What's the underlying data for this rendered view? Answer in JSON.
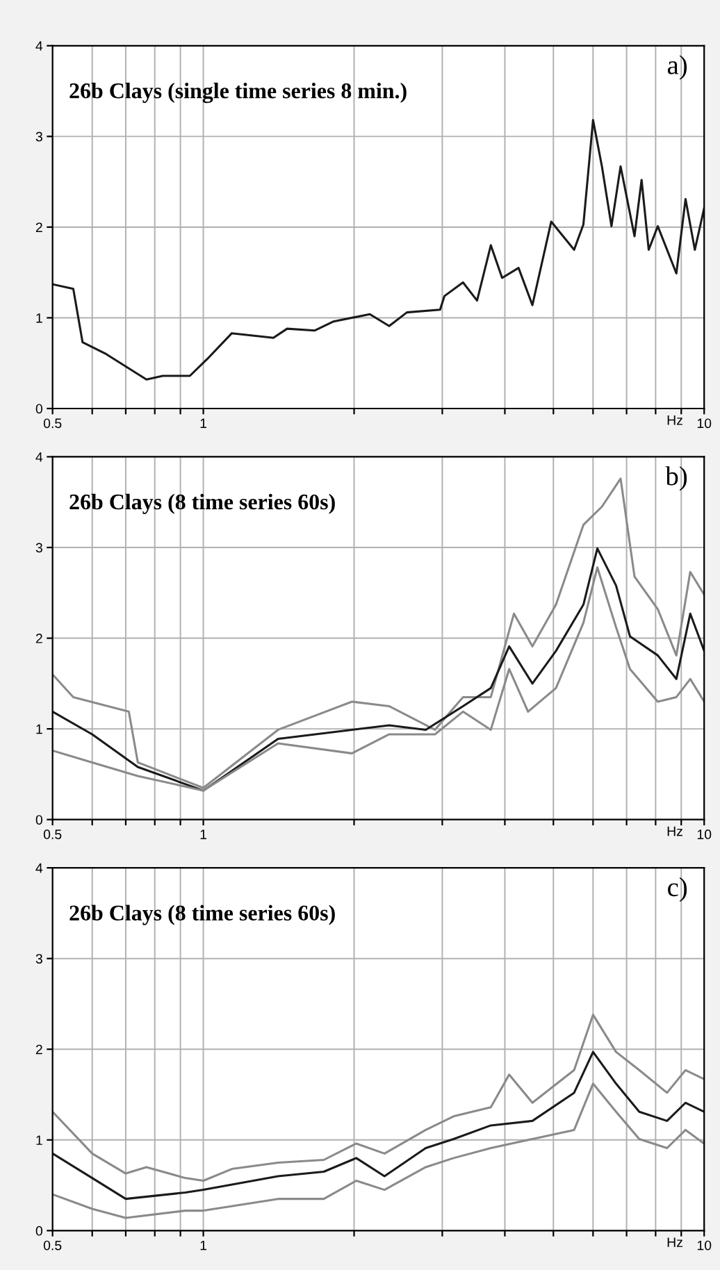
{
  "chart_data": [
    {
      "type": "line",
      "title": "26b Clays (single time series 8 min.)",
      "xlabel": "Hz",
      "annotations": [
        "a)"
      ],
      "log": "x",
      "grid": true,
      "xlim": [
        0.5,
        10
      ],
      "ylim": [
        0,
        4
      ],
      "xticks": [
        0.5,
        {
          "value": 0.6,
          "label": null
        },
        {
          "value": 0.7,
          "label": null
        },
        {
          "value": 0.8,
          "label": null
        },
        {
          "value": 0.9,
          "label": null
        },
        1,
        {
          "value": 2,
          "label": null
        },
        {
          "value": 3,
          "label": null
        },
        {
          "value": 4,
          "label": null
        },
        {
          "value": 5,
          "label": null
        },
        {
          "value": 6,
          "label": null
        },
        {
          "value": 7,
          "label": null
        },
        {
          "value": 8,
          "label": null
        },
        {
          "value": 9,
          "label": null
        },
        10
      ],
      "yticks": [
        0,
        1,
        2,
        3,
        4
      ],
      "series": [
        {
          "color": "#1a1a1a",
          "x": [
            0.5,
            0.55,
            0.574,
            0.64,
            0.77,
            0.83,
            0.94,
            1.02,
            1.14,
            1.38,
            1.47,
            1.67,
            1.82,
            2.15,
            2.35,
            2.55,
            2.97,
            3.03,
            3.3,
            3.52,
            3.75,
            3.95,
            4.26,
            4.54,
            4.95,
            5.5,
            5.74,
            6.0,
            6.25,
            6.53,
            6.81,
            7.26,
            7.5,
            7.75,
            8.08,
            8.8,
            9.18,
            9.58,
            10
          ],
          "values": [
            1.37,
            1.32,
            0.73,
            0.6,
            0.32,
            0.36,
            0.36,
            0.55,
            0.83,
            0.78,
            0.88,
            0.86,
            0.96,
            1.04,
            0.91,
            1.06,
            1.09,
            1.24,
            1.39,
            1.19,
            1.8,
            1.44,
            1.55,
            1.14,
            2.06,
            1.75,
            2.03,
            3.18,
            2.67,
            2.01,
            2.67,
            1.9,
            2.52,
            1.75,
            2.01,
            1.49,
            2.31,
            1.75,
            2.21
          ]
        }
      ]
    },
    {
      "type": "line",
      "title": "26b Clays (8 time series 60s)",
      "xlabel": "Hz",
      "annotations": [
        "b)"
      ],
      "log": "x",
      "grid": true,
      "xlim": [
        0.5,
        10
      ],
      "ylim": [
        0,
        4
      ],
      "xticks": [
        0.5,
        {
          "value": 0.6,
          "label": null
        },
        {
          "value": 0.7,
          "label": null
        },
        {
          "value": 0.8,
          "label": null
        },
        {
          "value": 0.9,
          "label": null
        },
        1,
        {
          "value": 2,
          "label": null
        },
        {
          "value": 3,
          "label": null
        },
        {
          "value": 4,
          "label": null
        },
        {
          "value": 5,
          "label": null
        },
        {
          "value": 6,
          "label": null
        },
        {
          "value": 7,
          "label": null
        },
        {
          "value": 8,
          "label": null
        },
        {
          "value": 9,
          "label": null
        },
        10
      ],
      "yticks": [
        0,
        1,
        2,
        3,
        4
      ],
      "series": [
        {
          "color": "#8a8a8a",
          "x": [
            0.5,
            0.55,
            0.71,
            0.74,
            1.0,
            1.41,
            1.98,
            2.35,
            2.9,
            3.3,
            3.75,
            4.17,
            4.54,
            5.06,
            5.74,
            6.25,
            6.81,
            7.26,
            8.08,
            8.8,
            9.38,
            10
          ],
          "values": [
            1.6,
            1.35,
            1.19,
            0.63,
            0.35,
            0.99,
            1.3,
            1.25,
            0.99,
            1.35,
            1.35,
            2.27,
            1.91,
            2.37,
            3.25,
            3.45,
            3.76,
            2.68,
            2.32,
            1.81,
            2.73,
            2.48
          ]
        },
        {
          "color": "#1a1a1a",
          "x": [
            0.5,
            0.6,
            0.74,
            1.0,
            1.41,
            1.98,
            2.35,
            2.78,
            3.3,
            3.75,
            4.08,
            4.54,
            5.06,
            5.74,
            6.12,
            6.67,
            7.11,
            8.08,
            8.8,
            9.38,
            10
          ],
          "values": [
            1.19,
            0.94,
            0.58,
            0.32,
            0.89,
            0.99,
            1.04,
            0.99,
            1.25,
            1.45,
            1.91,
            1.5,
            1.86,
            2.37,
            2.99,
            2.58,
            2.02,
            1.81,
            1.55,
            2.27,
            1.86
          ]
        },
        {
          "color": "#8a8a8a",
          "x": [
            0.5,
            0.6,
            0.74,
            1.0,
            1.41,
            1.98,
            2.35,
            2.9,
            3.3,
            3.75,
            4.08,
            4.45,
            5.06,
            5.74,
            6.12,
            6.67,
            7.11,
            8.08,
            8.8,
            9.38,
            10
          ],
          "values": [
            0.76,
            0.63,
            0.48,
            0.32,
            0.84,
            0.73,
            0.94,
            0.94,
            1.19,
            0.99,
            1.66,
            1.19,
            1.45,
            2.17,
            2.78,
            2.12,
            1.66,
            1.3,
            1.35,
            1.55,
            1.3
          ]
        }
      ]
    },
    {
      "type": "line",
      "title": "26b Clays (8 time series 60s)",
      "xlabel": "Hz",
      "annotations": [
        "c)"
      ],
      "log": "x",
      "grid": true,
      "xlim": [
        0.5,
        10
      ],
      "ylim": [
        0,
        4
      ],
      "xticks": [
        0.5,
        {
          "value": 0.6,
          "label": null
        },
        {
          "value": 0.7,
          "label": null
        },
        {
          "value": 0.8,
          "label": null
        },
        {
          "value": 0.9,
          "label": null
        },
        1,
        {
          "value": 2,
          "label": null
        },
        {
          "value": 3,
          "label": null
        },
        {
          "value": 4,
          "label": null
        },
        {
          "value": 5,
          "label": null
        },
        {
          "value": 6,
          "label": null
        },
        {
          "value": 7,
          "label": null
        },
        {
          "value": 8,
          "label": null
        },
        {
          "value": 9,
          "label": null
        },
        10
      ],
      "yticks": [
        0,
        1,
        2,
        3,
        4
      ],
      "series": [
        {
          "color": "#8a8a8a",
          "x": [
            0.5,
            0.6,
            0.7,
            0.77,
            0.92,
            1.0,
            1.14,
            1.41,
            1.74,
            2.02,
            2.3,
            2.78,
            3.16,
            3.75,
            4.08,
            4.54,
            5.5,
            6.0,
            6.67,
            7.42,
            8.43,
            9.18,
            10
          ],
          "values": [
            1.31,
            0.85,
            0.63,
            0.7,
            0.58,
            0.55,
            0.68,
            0.75,
            0.78,
            0.96,
            0.85,
            1.11,
            1.26,
            1.36,
            1.72,
            1.41,
            1.77,
            2.38,
            1.97,
            1.77,
            1.52,
            1.77,
            1.67
          ]
        },
        {
          "color": "#1a1a1a",
          "x": [
            0.5,
            0.6,
            0.7,
            0.92,
            1.0,
            1.41,
            1.74,
            2.02,
            2.3,
            2.78,
            3.16,
            3.75,
            4.54,
            5.5,
            6.0,
            6.67,
            7.42,
            8.43,
            9.18,
            10
          ],
          "values": [
            0.85,
            0.58,
            0.35,
            0.42,
            0.45,
            0.6,
            0.65,
            0.8,
            0.6,
            0.91,
            1.01,
            1.16,
            1.21,
            1.52,
            1.97,
            1.62,
            1.31,
            1.21,
            1.41,
            1.31
          ]
        },
        {
          "color": "#8a8a8a",
          "x": [
            0.5,
            0.6,
            0.7,
            0.92,
            1.0,
            1.41,
            1.74,
            2.02,
            2.3,
            2.78,
            3.16,
            3.75,
            4.54,
            5.5,
            6.0,
            6.67,
            7.42,
            8.43,
            9.18,
            10
          ],
          "values": [
            0.4,
            0.24,
            0.14,
            0.22,
            0.22,
            0.35,
            0.35,
            0.55,
            0.45,
            0.7,
            0.8,
            0.91,
            1.01,
            1.11,
            1.62,
            1.31,
            1.01,
            0.91,
            1.11,
            0.96
          ]
        }
      ]
    }
  ]
}
